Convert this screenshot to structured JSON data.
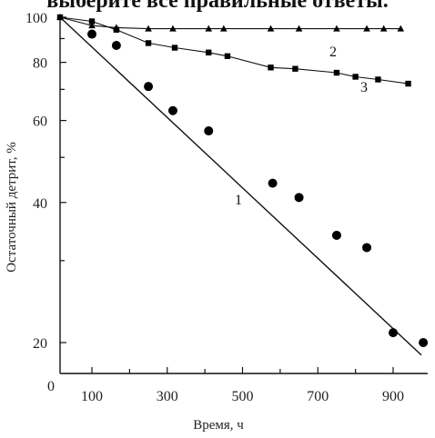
{
  "header": {
    "text": "выберите все правильные ответы."
  },
  "chart_data": {
    "type": "scatter",
    "xlabel": "Время, ч",
    "ylabel": "Остаточный детрит, %",
    "xlim": [
      0,
      1000
    ],
    "ylim": [
      15,
      100
    ],
    "y_scale": "log",
    "x_ticks": [
      "0",
      "100",
      "300",
      "500",
      "700",
      "900"
    ],
    "y_ticks": [
      "20",
      "40",
      "60",
      "80",
      "100"
    ],
    "grid": false,
    "series": [
      {
        "name": "1",
        "marker": "circle",
        "points": [
          [
            100,
            92
          ],
          [
            165,
            87
          ],
          [
            250,
            71
          ],
          [
            315,
            63
          ],
          [
            410,
            57
          ],
          [
            580,
            44
          ],
          [
            650,
            41
          ],
          [
            750,
            34
          ],
          [
            830,
            32
          ],
          [
            900,
            21
          ],
          [
            980,
            20
          ]
        ],
        "fit_line": [
          [
            0,
            100
          ],
          [
            975,
            18.8
          ]
        ]
      },
      {
        "name": "2",
        "marker": "triangle",
        "points": [
          [
            0,
            100
          ],
          [
            100,
            96
          ],
          [
            165,
            95
          ],
          [
            250,
            94.5
          ],
          [
            315,
            94.5
          ],
          [
            410,
            94.5
          ],
          [
            450,
            94.5
          ],
          [
            575,
            94.5
          ],
          [
            650,
            94.5
          ],
          [
            750,
            94.5
          ],
          [
            830,
            94.5
          ],
          [
            875,
            94.5
          ],
          [
            920,
            94.5
          ]
        ],
        "line": true
      },
      {
        "name": "3",
        "marker": "square",
        "points": [
          [
            0,
            100
          ],
          [
            100,
            98
          ],
          [
            165,
            94
          ],
          [
            250,
            88
          ],
          [
            320,
            86
          ],
          [
            410,
            84
          ],
          [
            460,
            82.5
          ],
          [
            575,
            78
          ],
          [
            640,
            77.5
          ],
          [
            750,
            76
          ],
          [
            800,
            74.5
          ],
          [
            860,
            73.5
          ],
          [
            940,
            72
          ]
        ],
        "line": true
      }
    ]
  }
}
